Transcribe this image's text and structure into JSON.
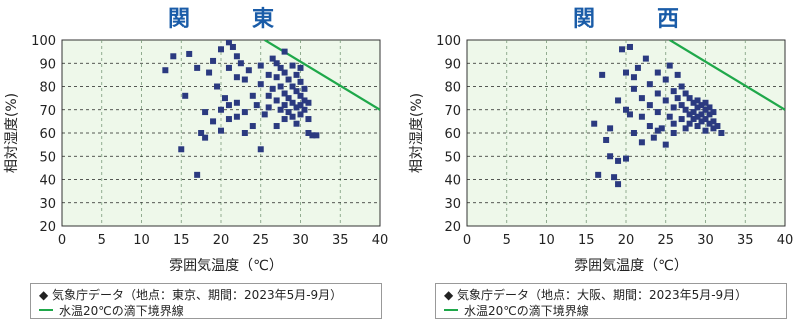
{
  "colors": {
    "title": "#1a5ca8",
    "marker": "#2b3a80",
    "threshold": "#1fa84a",
    "plot_bg": "#eef8ea",
    "grid": "#7a9a7a"
  },
  "icons": {
    "series_marker": "diamond-icon",
    "threshold_marker": "green-line-icon"
  },
  "chart_data": [
    {
      "type": "scatter",
      "title": "関　東",
      "xlabel": "雰囲気温度（℃）",
      "ylabel": "相対湿度(%)",
      "xlim": [
        0,
        40
      ],
      "ylim": [
        20,
        100
      ],
      "xticks": [
        "0",
        "5",
        "10",
        "15",
        "20",
        "25",
        "30",
        "35",
        "40"
      ],
      "yticks": [
        "20",
        "30",
        "40",
        "50",
        "60",
        "70",
        "80",
        "90",
        "100"
      ],
      "grid": true,
      "legend": [
        "◆ 気象庁データ（地点：東京、期間：2023年5月-9月）",
        "水温20℃の滴下境界線"
      ],
      "threshold_line": [
        [
          25.5,
          100
        ],
        [
          40,
          70
        ]
      ],
      "points": [
        [
          13,
          87
        ],
        [
          14,
          93
        ],
        [
          15,
          53
        ],
        [
          15.5,
          76
        ],
        [
          16,
          94
        ],
        [
          17,
          88
        ],
        [
          17,
          42
        ],
        [
          17.5,
          60
        ],
        [
          18,
          58
        ],
        [
          18,
          69
        ],
        [
          18.5,
          86
        ],
        [
          19,
          91
        ],
        [
          19,
          65
        ],
        [
          19.5,
          80
        ],
        [
          20,
          61
        ],
        [
          20,
          70
        ],
        [
          20,
          96
        ],
        [
          20.5,
          75
        ],
        [
          21,
          99
        ],
        [
          21,
          88
        ],
        [
          21,
          72
        ],
        [
          21,
          66
        ],
        [
          21.5,
          97
        ],
        [
          22,
          93
        ],
        [
          22,
          84
        ],
        [
          22,
          73
        ],
        [
          22,
          67
        ],
        [
          22.5,
          90
        ],
        [
          23,
          83
        ],
        [
          23,
          69
        ],
        [
          23,
          60
        ],
        [
          23.5,
          87
        ],
        [
          24,
          76
        ],
        [
          24,
          63
        ],
        [
          24.5,
          72
        ],
        [
          25,
          53
        ],
        [
          25,
          81
        ],
        [
          25,
          89
        ],
        [
          25.5,
          68
        ],
        [
          26,
          85
        ],
        [
          26,
          76
        ],
        [
          26,
          71
        ],
        [
          26.5,
          92
        ],
        [
          26.5,
          79
        ],
        [
          27,
          84
        ],
        [
          27,
          74
        ],
        [
          27,
          63
        ],
        [
          27.5,
          88
        ],
        [
          27.5,
          80
        ],
        [
          27.5,
          70
        ],
        [
          28,
          86
        ],
        [
          28,
          77
        ],
        [
          28,
          72
        ],
        [
          28,
          66
        ],
        [
          28.5,
          83
        ],
        [
          28.5,
          75
        ],
        [
          28.5,
          69
        ],
        [
          29,
          89
        ],
        [
          29,
          80
        ],
        [
          29,
          73
        ],
        [
          29,
          67
        ],
        [
          29.5,
          85
        ],
        [
          29.5,
          78
        ],
        [
          29.5,
          71
        ],
        [
          29.5,
          64
        ],
        [
          30,
          82
        ],
        [
          30,
          76
        ],
        [
          30,
          72
        ],
        [
          30,
          68
        ],
        [
          30.5,
          79
        ],
        [
          30.5,
          74
        ],
        [
          30.5,
          70
        ],
        [
          31,
          73
        ],
        [
          31,
          66
        ],
        [
          31,
          60
        ],
        [
          31.5,
          59
        ],
        [
          32,
          59
        ],
        [
          30,
          88
        ],
        [
          28,
          95
        ],
        [
          27,
          90
        ]
      ]
    },
    {
      "type": "scatter",
      "title": "関　西",
      "xlabel": "雰囲気温度（℃）",
      "ylabel": "相対湿度(%)",
      "xlim": [
        0,
        40
      ],
      "ylim": [
        20,
        100
      ],
      "xticks": [
        "0",
        "5",
        "10",
        "15",
        "20",
        "25",
        "30",
        "35",
        "40"
      ],
      "yticks": [
        "20",
        "30",
        "40",
        "50",
        "60",
        "70",
        "80",
        "90",
        "100"
      ],
      "grid": true,
      "legend": [
        "◆ 気象庁データ（地点：大阪、期間：2023年5月-9月）",
        "水温20℃の滴下境界線"
      ],
      "threshold_line": [
        [
          25.5,
          100
        ],
        [
          40,
          70
        ]
      ],
      "points": [
        [
          16,
          64
        ],
        [
          16.5,
          42
        ],
        [
          17,
          85
        ],
        [
          17.5,
          57
        ],
        [
          18,
          50
        ],
        [
          18,
          62
        ],
        [
          18.5,
          41
        ],
        [
          19,
          38
        ],
        [
          19,
          48
        ],
        [
          19,
          74
        ],
        [
          19.5,
          96
        ],
        [
          20,
          49
        ],
        [
          20,
          86
        ],
        [
          20,
          70
        ],
        [
          20.5,
          97
        ],
        [
          20.5,
          68
        ],
        [
          21,
          60
        ],
        [
          21,
          79
        ],
        [
          21.5,
          88
        ],
        [
          22,
          56
        ],
        [
          22,
          75
        ],
        [
          22,
          67
        ],
        [
          22.5,
          92
        ],
        [
          23,
          63
        ],
        [
          23,
          81
        ],
        [
          23,
          72
        ],
        [
          23.5,
          58
        ],
        [
          24,
          86
        ],
        [
          24,
          69
        ],
        [
          24,
          77
        ],
        [
          24.5,
          62
        ],
        [
          25,
          74
        ],
        [
          25,
          55
        ],
        [
          25,
          83
        ],
        [
          25.5,
          89
        ],
        [
          25.5,
          67
        ],
        [
          26,
          78
        ],
        [
          26,
          71
        ],
        [
          26,
          64
        ],
        [
          26.5,
          85
        ],
        [
          26.5,
          75
        ],
        [
          27,
          80
        ],
        [
          27,
          72
        ],
        [
          27,
          66
        ],
        [
          27.5,
          77
        ],
        [
          27.5,
          70
        ],
        [
          27.5,
          62
        ],
        [
          28,
          75
        ],
        [
          28,
          68
        ],
        [
          28,
          64
        ],
        [
          28.5,
          73
        ],
        [
          28.5,
          69
        ],
        [
          28.5,
          66
        ],
        [
          29,
          74
        ],
        [
          29,
          71
        ],
        [
          29,
          67
        ],
        [
          29,
          63
        ],
        [
          29.5,
          72
        ],
        [
          29.5,
          68
        ],
        [
          29.5,
          65
        ],
        [
          30,
          73
        ],
        [
          30,
          70
        ],
        [
          30,
          66
        ],
        [
          30,
          61
        ],
        [
          30.5,
          71
        ],
        [
          30.5,
          68
        ],
        [
          30.5,
          64
        ],
        [
          31,
          69
        ],
        [
          31,
          65
        ],
        [
          31,
          62
        ],
        [
          31.5,
          63
        ],
        [
          32,
          60
        ],
        [
          21,
          84
        ],
        [
          24,
          61
        ],
        [
          26,
          60
        ]
      ]
    }
  ]
}
